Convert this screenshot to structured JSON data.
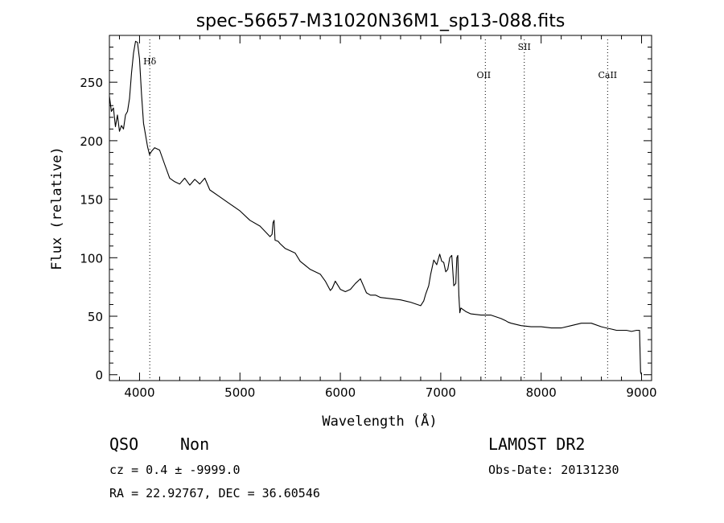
{
  "chart_data": {
    "type": "line",
    "title": "spec-56657-M31020N36M1_sp13-088.fits",
    "xlabel": "Wavelength (Å)",
    "ylabel": "Flux (relative)",
    "xlim": [
      3700,
      9100
    ],
    "ylim": [
      -5,
      290
    ],
    "xticks": [
      4000,
      5000,
      6000,
      7000,
      8000,
      9000
    ],
    "yticks": [
      0,
      50,
      100,
      150,
      200,
      250
    ],
    "grid": false,
    "series": [
      {
        "x": [
          3700,
          3720,
          3740,
          3760,
          3780,
          3800,
          3820,
          3840,
          3860,
          3880,
          3900,
          3920,
          3940,
          3960,
          3980,
          4000,
          4020,
          4040,
          4060,
          4080,
          4100,
          4120,
          4150,
          4200,
          4250,
          4300,
          4350,
          4400,
          4450,
          4500,
          4550,
          4600,
          4650,
          4700,
          4800,
          4900,
          5000,
          5100,
          5200,
          5300,
          5320,
          5330,
          5340,
          5350,
          5380,
          5400,
          5450,
          5500,
          5550,
          5600,
          5700,
          5800,
          5850,
          5900,
          5920,
          5950,
          6000,
          6050,
          6100,
          6150,
          6200,
          6230,
          6260,
          6300,
          6350,
          6400,
          6500,
          6600,
          6700,
          6800,
          6830,
          6850,
          6880,
          6900,
          6930,
          6960,
          6990,
          7010,
          7030,
          7050,
          7070,
          7090,
          7110,
          7130,
          7150,
          7160,
          7170,
          7180,
          7190,
          7200,
          7250,
          7300,
          7400,
          7500,
          7600,
          7650,
          7670,
          7700,
          7800,
          7900,
          8000,
          8100,
          8200,
          8300,
          8400,
          8450,
          8500,
          8600,
          8650,
          8700,
          8750,
          8800,
          8850,
          8900,
          8950,
          8980,
          8990,
          9000
        ],
        "y": [
          238,
          225,
          228,
          212,
          222,
          208,
          213,
          210,
          222,
          225,
          236,
          258,
          275,
          285,
          284,
          270,
          240,
          215,
          205,
          195,
          188,
          191,
          194,
          192,
          180,
          168,
          165,
          163,
          168,
          162,
          167,
          163,
          168,
          158,
          152,
          146,
          140,
          132,
          127,
          118,
          120,
          130,
          132,
          115,
          114,
          112,
          108,
          106,
          104,
          97,
          90,
          86,
          80,
          72,
          74,
          80,
          73,
          71,
          73,
          78,
          82,
          76,
          70,
          68,
          68,
          66,
          65,
          64,
          62,
          59,
          63,
          69,
          76,
          86,
          98,
          94,
          103,
          97,
          96,
          88,
          90,
          100,
          102,
          76,
          78,
          100,
          102,
          68,
          53,
          57,
          54,
          52,
          51,
          51,
          48,
          46,
          45,
          44,
          42,
          41,
          41,
          40,
          40,
          42,
          44,
          44,
          44,
          41,
          40,
          39,
          38,
          38,
          38,
          37,
          38,
          38,
          2,
          0
        ]
      }
    ],
    "lines": [
      {
        "label": "Hδ",
        "x": 4102
      },
      {
        "label": "OII",
        "x": 7444
      },
      {
        "label": "SII",
        "x": 7832
      },
      {
        "label": "CaII",
        "x": 8662
      }
    ]
  },
  "footer": {
    "class": "QSO",
    "subclass": "Non",
    "survey": "LAMOST DR2",
    "cz": "cz = 0.4 ± -9999.0",
    "obs_date": "Obs-Date: 20131230",
    "coords": "RA =  22.92767, DEC =  36.60546"
  }
}
